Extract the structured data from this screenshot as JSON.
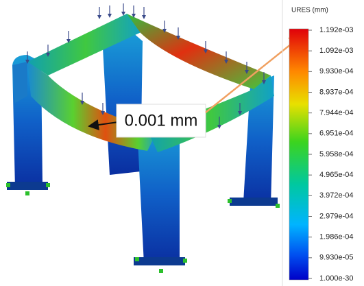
{
  "legend": {
    "title": "URES (mm)",
    "labels": [
      "1.192e-03",
      "1.092e-03",
      "9.930e-04",
      "8.937e-04",
      "7.944e-04",
      "6.951e-04",
      "5.958e-04",
      "4.965e-04",
      "3.972e-04",
      "2.979e-04",
      "1.986e-04",
      "9.930e-05",
      "1.000e-30"
    ]
  },
  "callout": "0.001 mm"
}
